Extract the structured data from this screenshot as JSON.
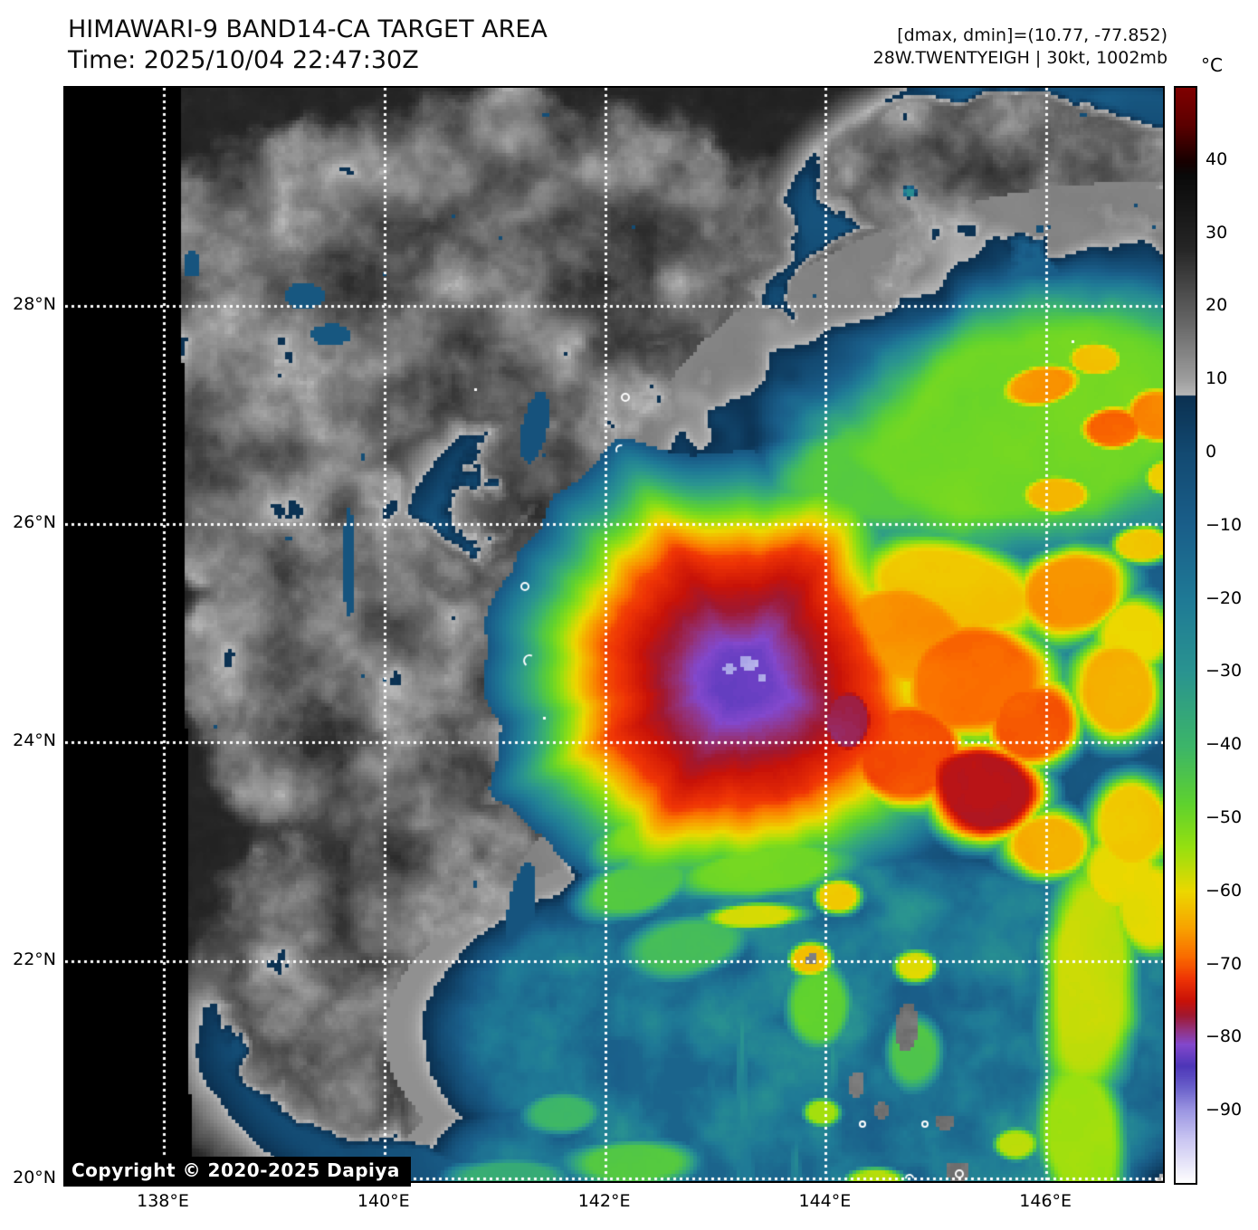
{
  "header": {
    "title_line1": "HIMAWARI-9 BAND14-CA TARGET AREA",
    "title_line2": "Time: 2025/10/04 22:47:30Z",
    "info_line1": "[dmax, dmin]=(10.77, -77.852)",
    "info_line2": "28W.TWENTYEIGH | 30kt, 1002mb"
  },
  "copyright": "Copyright © 2020-2025 Dapiya",
  "map": {
    "lat_gridlines": [
      {
        "value": 28,
        "label": "28°N"
      },
      {
        "value": 26,
        "label": "26°N"
      },
      {
        "value": 24,
        "label": "24°N"
      },
      {
        "value": 22,
        "label": "22°N"
      },
      {
        "value": 20,
        "label": "20°N"
      }
    ],
    "lon_gridlines": [
      {
        "value": 138,
        "label": "138°E"
      },
      {
        "value": 140,
        "label": "140°E"
      },
      {
        "value": 142,
        "label": "142°E"
      },
      {
        "value": 144,
        "label": "144°E"
      },
      {
        "value": 146,
        "label": "146°E"
      }
    ]
  },
  "colorbar": {
    "unit_label": "°C",
    "range": {
      "max": 50,
      "min": -100
    },
    "ticks": [
      {
        "value": 40,
        "label": "40"
      },
      {
        "value": 30,
        "label": "30"
      },
      {
        "value": 20,
        "label": "20"
      },
      {
        "value": 10,
        "label": "10"
      },
      {
        "value": 0,
        "label": "0"
      },
      {
        "value": -10,
        "label": "−10"
      },
      {
        "value": -20,
        "label": "−20"
      },
      {
        "value": -30,
        "label": "−30"
      },
      {
        "value": -40,
        "label": "−40"
      },
      {
        "value": -50,
        "label": "−50"
      },
      {
        "value": -60,
        "label": "−60"
      },
      {
        "value": -70,
        "label": "−70"
      },
      {
        "value": -80,
        "label": "−80"
      },
      {
        "value": -90,
        "label": "−90"
      }
    ],
    "stops": [
      [
        50,
        "#7f0000"
      ],
      [
        45,
        "#5c0000"
      ],
      [
        40,
        "#180000"
      ],
      [
        38,
        "#0a0a0a"
      ],
      [
        28,
        "#262626"
      ],
      [
        18,
        "#666666"
      ],
      [
        10,
        "#9e9e9e"
      ],
      [
        8,
        "#b6b6b6"
      ],
      [
        7.99,
        "#0b3050"
      ],
      [
        0,
        "#134a72"
      ],
      [
        -10,
        "#1a5f8a"
      ],
      [
        -20,
        "#1f7a96"
      ],
      [
        -30,
        "#2a9490"
      ],
      [
        -40,
        "#3cb56a"
      ],
      [
        -48,
        "#5fd22f"
      ],
      [
        -54,
        "#96e010"
      ],
      [
        -60,
        "#ecd800"
      ],
      [
        -65,
        "#f8a300"
      ],
      [
        -69,
        "#fa6c00"
      ],
      [
        -72,
        "#ee3305"
      ],
      [
        -75,
        "#c81208"
      ],
      [
        -77,
        "#a01830"
      ],
      [
        -79,
        "#93337f"
      ],
      [
        -81,
        "#8348cc"
      ],
      [
        -84,
        "#4d36b8"
      ],
      [
        -87,
        "#6c63cc"
      ],
      [
        -90,
        "#9c96e2"
      ],
      [
        -94,
        "#cac6f2"
      ],
      [
        -100,
        "#ffffff"
      ]
    ]
  }
}
